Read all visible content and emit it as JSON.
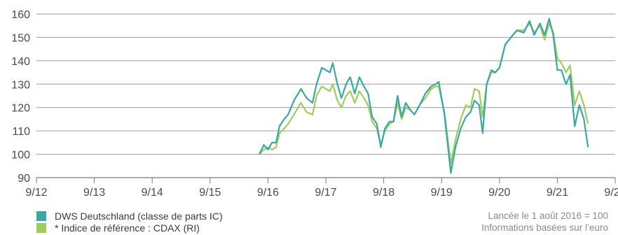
{
  "chart_data": {
    "type": "line",
    "ylim": [
      90,
      160
    ],
    "yticks": [
      90,
      100,
      110,
      120,
      130,
      140,
      150,
      160
    ],
    "xlim": [
      2012,
      2022
    ],
    "xticks": [
      {
        "x": 2012,
        "label": "9/12"
      },
      {
        "x": 2013,
        "label": "9/13"
      },
      {
        "x": 2014,
        "label": "9/14"
      },
      {
        "x": 2015,
        "label": "9/15"
      },
      {
        "x": 2016,
        "label": "9/16"
      },
      {
        "x": 2017,
        "label": "9/17"
      },
      {
        "x": 2018,
        "label": "9/18"
      },
      {
        "x": 2019,
        "label": "9/19"
      },
      {
        "x": 2020,
        "label": "9/20"
      },
      {
        "x": 2021,
        "label": "9/21"
      },
      {
        "x": 2022,
        "label": "9/22"
      }
    ],
    "grid": true,
    "series": [
      {
        "name": "DWS Deutschland (classe de parts IC)",
        "color": "#3aa6a6",
        "points": [
          [
            2015.85,
            100
          ],
          [
            2015.93,
            104
          ],
          [
            2016.0,
            102
          ],
          [
            2016.07,
            105
          ],
          [
            2016.14,
            105
          ],
          [
            2016.2,
            112
          ],
          [
            2016.28,
            115
          ],
          [
            2016.35,
            117
          ],
          [
            2016.45,
            123
          ],
          [
            2016.57,
            128
          ],
          [
            2016.67,
            124
          ],
          [
            2016.77,
            122
          ],
          [
            2016.84,
            130
          ],
          [
            2016.93,
            137
          ],
          [
            2017.0,
            136
          ],
          [
            2017.07,
            135
          ],
          [
            2017.12,
            139
          ],
          [
            2017.2,
            130
          ],
          [
            2017.27,
            124
          ],
          [
            2017.35,
            130
          ],
          [
            2017.42,
            133
          ],
          [
            2017.5,
            126
          ],
          [
            2017.58,
            133
          ],
          [
            2017.66,
            129
          ],
          [
            2017.73,
            126
          ],
          [
            2017.8,
            116
          ],
          [
            2017.88,
            113
          ],
          [
            2017.95,
            103
          ],
          [
            2018.02,
            111
          ],
          [
            2018.1,
            114
          ],
          [
            2018.17,
            114
          ],
          [
            2018.24,
            125
          ],
          [
            2018.31,
            116
          ],
          [
            2018.38,
            122
          ],
          [
            2018.46,
            119
          ],
          [
            2018.53,
            117
          ],
          [
            2018.62,
            121
          ],
          [
            2018.72,
            126
          ],
          [
            2018.82,
            129
          ],
          [
            2018.9,
            130
          ],
          [
            2018.95,
            131
          ],
          [
            2019.05,
            117
          ],
          [
            2019.16,
            92
          ],
          [
            2019.24,
            103
          ],
          [
            2019.33,
            111
          ],
          [
            2019.42,
            116
          ],
          [
            2019.5,
            118
          ],
          [
            2019.57,
            123
          ],
          [
            2019.65,
            121
          ],
          [
            2019.71,
            109
          ],
          [
            2019.78,
            130
          ],
          [
            2019.86,
            136
          ],
          [
            2019.93,
            135
          ],
          [
            2020.0,
            137
          ],
          [
            2020.1,
            147
          ],
          [
            2020.2,
            150
          ],
          [
            2020.3,
            153
          ],
          [
            2020.42,
            152
          ],
          [
            2020.52,
            157
          ],
          [
            2020.6,
            151
          ],
          [
            2020.7,
            156
          ],
          [
            2020.78,
            151
          ],
          [
            2020.86,
            158
          ],
          [
            2020.93,
            151
          ],
          [
            2021.0,
            136
          ],
          [
            2021.07,
            136
          ],
          [
            2021.15,
            130
          ],
          [
            2021.22,
            134
          ],
          [
            2021.3,
            112
          ],
          [
            2021.38,
            121
          ],
          [
            2021.46,
            115
          ],
          [
            2021.53,
            103
          ]
        ]
      },
      {
        "name": "* Indice de référence : CDAX (RI)",
        "color": "#9dcd5c",
        "points": [
          [
            2015.85,
            100
          ],
          [
            2015.93,
            102
          ],
          [
            2016.0,
            103
          ],
          [
            2016.07,
            102
          ],
          [
            2016.14,
            103
          ],
          [
            2016.2,
            109
          ],
          [
            2016.28,
            111
          ],
          [
            2016.35,
            113
          ],
          [
            2016.45,
            117
          ],
          [
            2016.57,
            122
          ],
          [
            2016.67,
            118
          ],
          [
            2016.77,
            117
          ],
          [
            2016.84,
            125
          ],
          [
            2016.93,
            129
          ],
          [
            2017.0,
            128
          ],
          [
            2017.07,
            127
          ],
          [
            2017.12,
            130
          ],
          [
            2017.2,
            123
          ],
          [
            2017.27,
            120
          ],
          [
            2017.35,
            125
          ],
          [
            2017.42,
            127
          ],
          [
            2017.5,
            122
          ],
          [
            2017.58,
            127
          ],
          [
            2017.66,
            124
          ],
          [
            2017.73,
            121
          ],
          [
            2017.8,
            114
          ],
          [
            2017.88,
            111
          ],
          [
            2017.95,
            104
          ],
          [
            2018.02,
            110
          ],
          [
            2018.1,
            113
          ],
          [
            2018.17,
            114
          ],
          [
            2018.24,
            122
          ],
          [
            2018.31,
            115
          ],
          [
            2018.38,
            120
          ],
          [
            2018.46,
            119
          ],
          [
            2018.53,
            117
          ],
          [
            2018.62,
            121
          ],
          [
            2018.72,
            124
          ],
          [
            2018.82,
            128
          ],
          [
            2018.9,
            129
          ],
          [
            2018.95,
            129
          ],
          [
            2019.05,
            118
          ],
          [
            2019.16,
            96
          ],
          [
            2019.24,
            106
          ],
          [
            2019.33,
            115
          ],
          [
            2019.42,
            121
          ],
          [
            2019.5,
            120
          ],
          [
            2019.57,
            128
          ],
          [
            2019.65,
            127
          ],
          [
            2019.71,
            116
          ],
          [
            2019.78,
            130
          ],
          [
            2019.86,
            135
          ],
          [
            2019.93,
            135
          ],
          [
            2020.0,
            137
          ],
          [
            2020.1,
            147
          ],
          [
            2020.2,
            150
          ],
          [
            2020.3,
            153
          ],
          [
            2020.42,
            153
          ],
          [
            2020.52,
            156
          ],
          [
            2020.6,
            152
          ],
          [
            2020.7,
            155
          ],
          [
            2020.78,
            149
          ],
          [
            2020.86,
            156
          ],
          [
            2020.93,
            152
          ],
          [
            2021.0,
            141
          ],
          [
            2021.07,
            139
          ],
          [
            2021.15,
            135
          ],
          [
            2021.22,
            138
          ],
          [
            2021.3,
            121
          ],
          [
            2021.38,
            127
          ],
          [
            2021.46,
            121
          ],
          [
            2021.53,
            113
          ]
        ]
      }
    ]
  },
  "legend": [
    {
      "label": "DWS Deutschland (classe de parts IC)",
      "color": "#3aa6a6"
    },
    {
      "label": "* Indice de référence : CDAX (RI)",
      "color": "#9dcd5c"
    }
  ],
  "notes": {
    "line1": "Lancée le 1 août 2016 = 100",
    "line2": "Informations basées sur l’euro"
  }
}
